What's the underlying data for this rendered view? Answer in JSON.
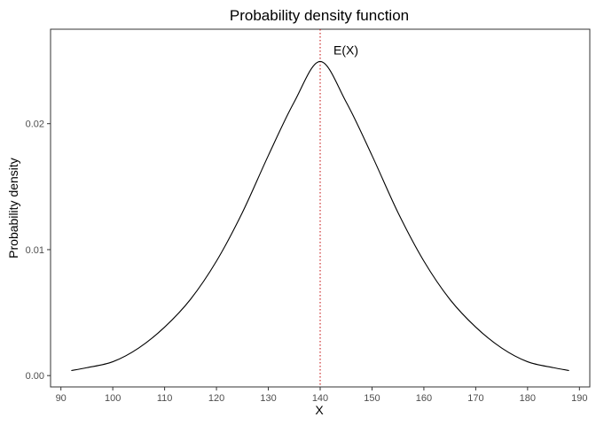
{
  "chart_data": {
    "type": "line",
    "title": "Probability density function",
    "xlabel": "X",
    "ylabel": "Probability density",
    "xlim": [
      88,
      192
    ],
    "ylim": [
      -0.0009,
      0.0275
    ],
    "x_ticks": [
      90,
      100,
      110,
      120,
      130,
      140,
      150,
      160,
      170,
      180,
      190
    ],
    "x_tick_labels": [
      "90",
      "100",
      "110",
      "120",
      "130",
      "140",
      "150",
      "160",
      "170",
      "180",
      "190"
    ],
    "y_ticks": [
      0,
      0.01,
      0.02
    ],
    "y_tick_labels": [
      "0.00",
      "0.01",
      "0.02"
    ],
    "grid": false,
    "series": [
      {
        "color": "#000000",
        "x": [
          92,
          95,
          100,
          105,
          110,
          115,
          120,
          125,
          130,
          135,
          140,
          145,
          150,
          155,
          160,
          165,
          170,
          175,
          180,
          185,
          188
        ],
        "y": [
          0.0004,
          0.00063,
          0.0011,
          0.00219,
          0.00385,
          0.00606,
          0.00909,
          0.01295,
          0.01747,
          0.02173,
          0.02494,
          0.02173,
          0.01747,
          0.01295,
          0.00909,
          0.00606,
          0.00385,
          0.00219,
          0.0011,
          0.00063,
          0.0004
        ]
      }
    ],
    "annotations": [
      {
        "type": "vline",
        "x": 140,
        "color": "#c00000",
        "style": "dotted"
      },
      {
        "type": "text",
        "text": "E(X)",
        "x": 140,
        "y": 0.0253
      }
    ]
  }
}
